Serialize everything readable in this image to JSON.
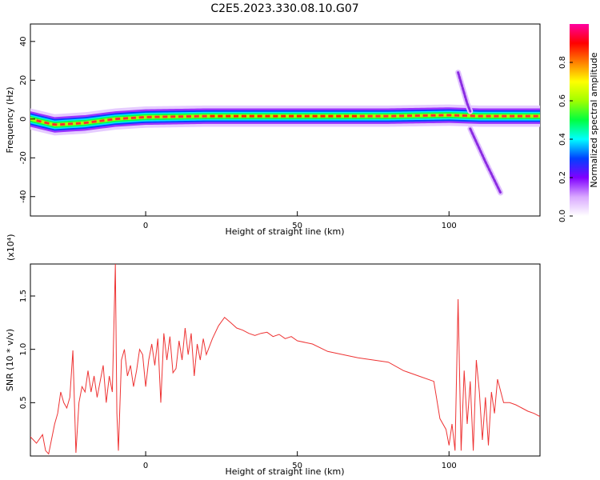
{
  "title": "C2E5.2023.330.08.10.G07",
  "chart_data": [
    {
      "type": "heatmap",
      "xlabel": "Height of straight line (km)",
      "ylabel": "Frequency (Hz)",
      "xlim": [
        -38,
        130
      ],
      "ylim": [
        -50,
        49
      ],
      "xticks": [
        0,
        50,
        100
      ],
      "yticks": [
        40,
        20,
        0,
        -20,
        -40
      ],
      "colorbar": {
        "label": "Normalized spectral amplitude",
        "range": [
          0,
          1
        ],
        "ticks": [
          "0.0",
          "0.2",
          "0.4",
          "0.6",
          "0.8"
        ],
        "colormap": [
          "#ffffff",
          "#d9a8ff",
          "#8000ff",
          "#0040ff",
          "#00ffff",
          "#00ff40",
          "#a0ff00",
          "#ffff00",
          "#ff8000",
          "#ff0000",
          "#ff00a0"
        ]
      },
      "main_band": {
        "points": [
          [
            -38,
            0
          ],
          [
            -30,
            -3
          ],
          [
            -20,
            -2
          ],
          [
            -10,
            0
          ],
          [
            0,
            1
          ],
          [
            20,
            1.5
          ],
          [
            50,
            1.5
          ],
          [
            80,
            1.5
          ],
          [
            100,
            2
          ],
          [
            110,
            1.5
          ],
          [
            130,
            1.5
          ]
        ],
        "halfwidth": 2.5
      },
      "secondary_traces": [
        {
          "points": [
            [
              103,
              24
            ],
            [
              106,
              8
            ],
            [
              107,
              4
            ]
          ]
        },
        {
          "points": [
            [
              107,
              -5
            ],
            [
              112,
              -22
            ],
            [
              117,
              -38
            ]
          ]
        }
      ]
    },
    {
      "type": "line",
      "xlabel": "Height of straight line (km)",
      "ylabel": "SNR (10 * v/v)",
      "yscale_label": "(x10⁴)",
      "xlim": [
        -38,
        130
      ],
      "ylim": [
        0,
        1.8
      ],
      "xticks": [
        0,
        50,
        100
      ],
      "yticks": [
        0.5,
        1.0,
        1.5
      ],
      "ytick_labels": [
        "0.5",
        "1.0",
        "1.5"
      ],
      "line_color": "#ee3333",
      "series": [
        {
          "x": [
            -38,
            -36,
            -34,
            -33,
            -32,
            -30,
            -29,
            -28,
            -27,
            -26,
            -25,
            -24,
            -23,
            -22,
            -21,
            -20,
            -19,
            -18,
            -17,
            -16,
            -15,
            -14,
            -13,
            -12,
            -11,
            -10,
            -9.5,
            -9,
            -8,
            -7,
            -6,
            -5,
            -4,
            -3,
            -2,
            -1,
            0,
            1,
            2,
            3,
            4,
            5,
            6,
            7,
            8,
            9,
            10,
            11,
            12,
            13,
            14,
            15,
            16,
            17,
            18,
            19,
            20,
            22,
            24,
            26,
            28,
            30,
            32,
            34,
            36,
            38,
            40,
            42,
            44,
            46,
            48,
            50,
            55,
            60,
            65,
            70,
            75,
            80,
            85,
            90,
            95,
            97,
            99,
            100,
            101,
            102,
            103,
            104,
            105,
            106,
            107,
            108,
            109,
            110,
            111,
            112,
            113,
            114,
            115,
            116,
            118,
            120,
            122,
            124,
            126,
            128,
            130
          ],
          "y": [
            0.18,
            0.12,
            0.2,
            0.05,
            0.02,
            0.3,
            0.4,
            0.6,
            0.5,
            0.45,
            0.55,
            0.99,
            0.03,
            0.5,
            0.65,
            0.6,
            0.8,
            0.6,
            0.75,
            0.55,
            0.7,
            0.85,
            0.5,
            0.75,
            0.6,
            1.8,
            0.4,
            0.05,
            0.9,
            1.0,
            0.75,
            0.85,
            0.65,
            0.8,
            1.0,
            0.95,
            0.65,
            0.9,
            1.05,
            0.85,
            1.1,
            0.5,
            1.15,
            0.9,
            1.12,
            0.78,
            0.82,
            1.08,
            0.9,
            1.2,
            0.95,
            1.15,
            0.75,
            1.05,
            0.9,
            1.1,
            0.95,
            1.1,
            1.22,
            1.3,
            1.25,
            1.2,
            1.18,
            1.15,
            1.13,
            1.15,
            1.16,
            1.12,
            1.14,
            1.1,
            1.12,
            1.08,
            1.05,
            0.98,
            0.95,
            0.92,
            0.9,
            0.88,
            0.8,
            0.75,
            0.7,
            0.35,
            0.25,
            0.1,
            0.3,
            0.05,
            1.47,
            0.05,
            0.8,
            0.3,
            0.7,
            0.05,
            0.9,
            0.6,
            0.15,
            0.55,
            0.1,
            0.6,
            0.4,
            0.72,
            0.5,
            0.5,
            0.48,
            0.45,
            0.42,
            0.4,
            0.37
          ]
        }
      ]
    }
  ]
}
